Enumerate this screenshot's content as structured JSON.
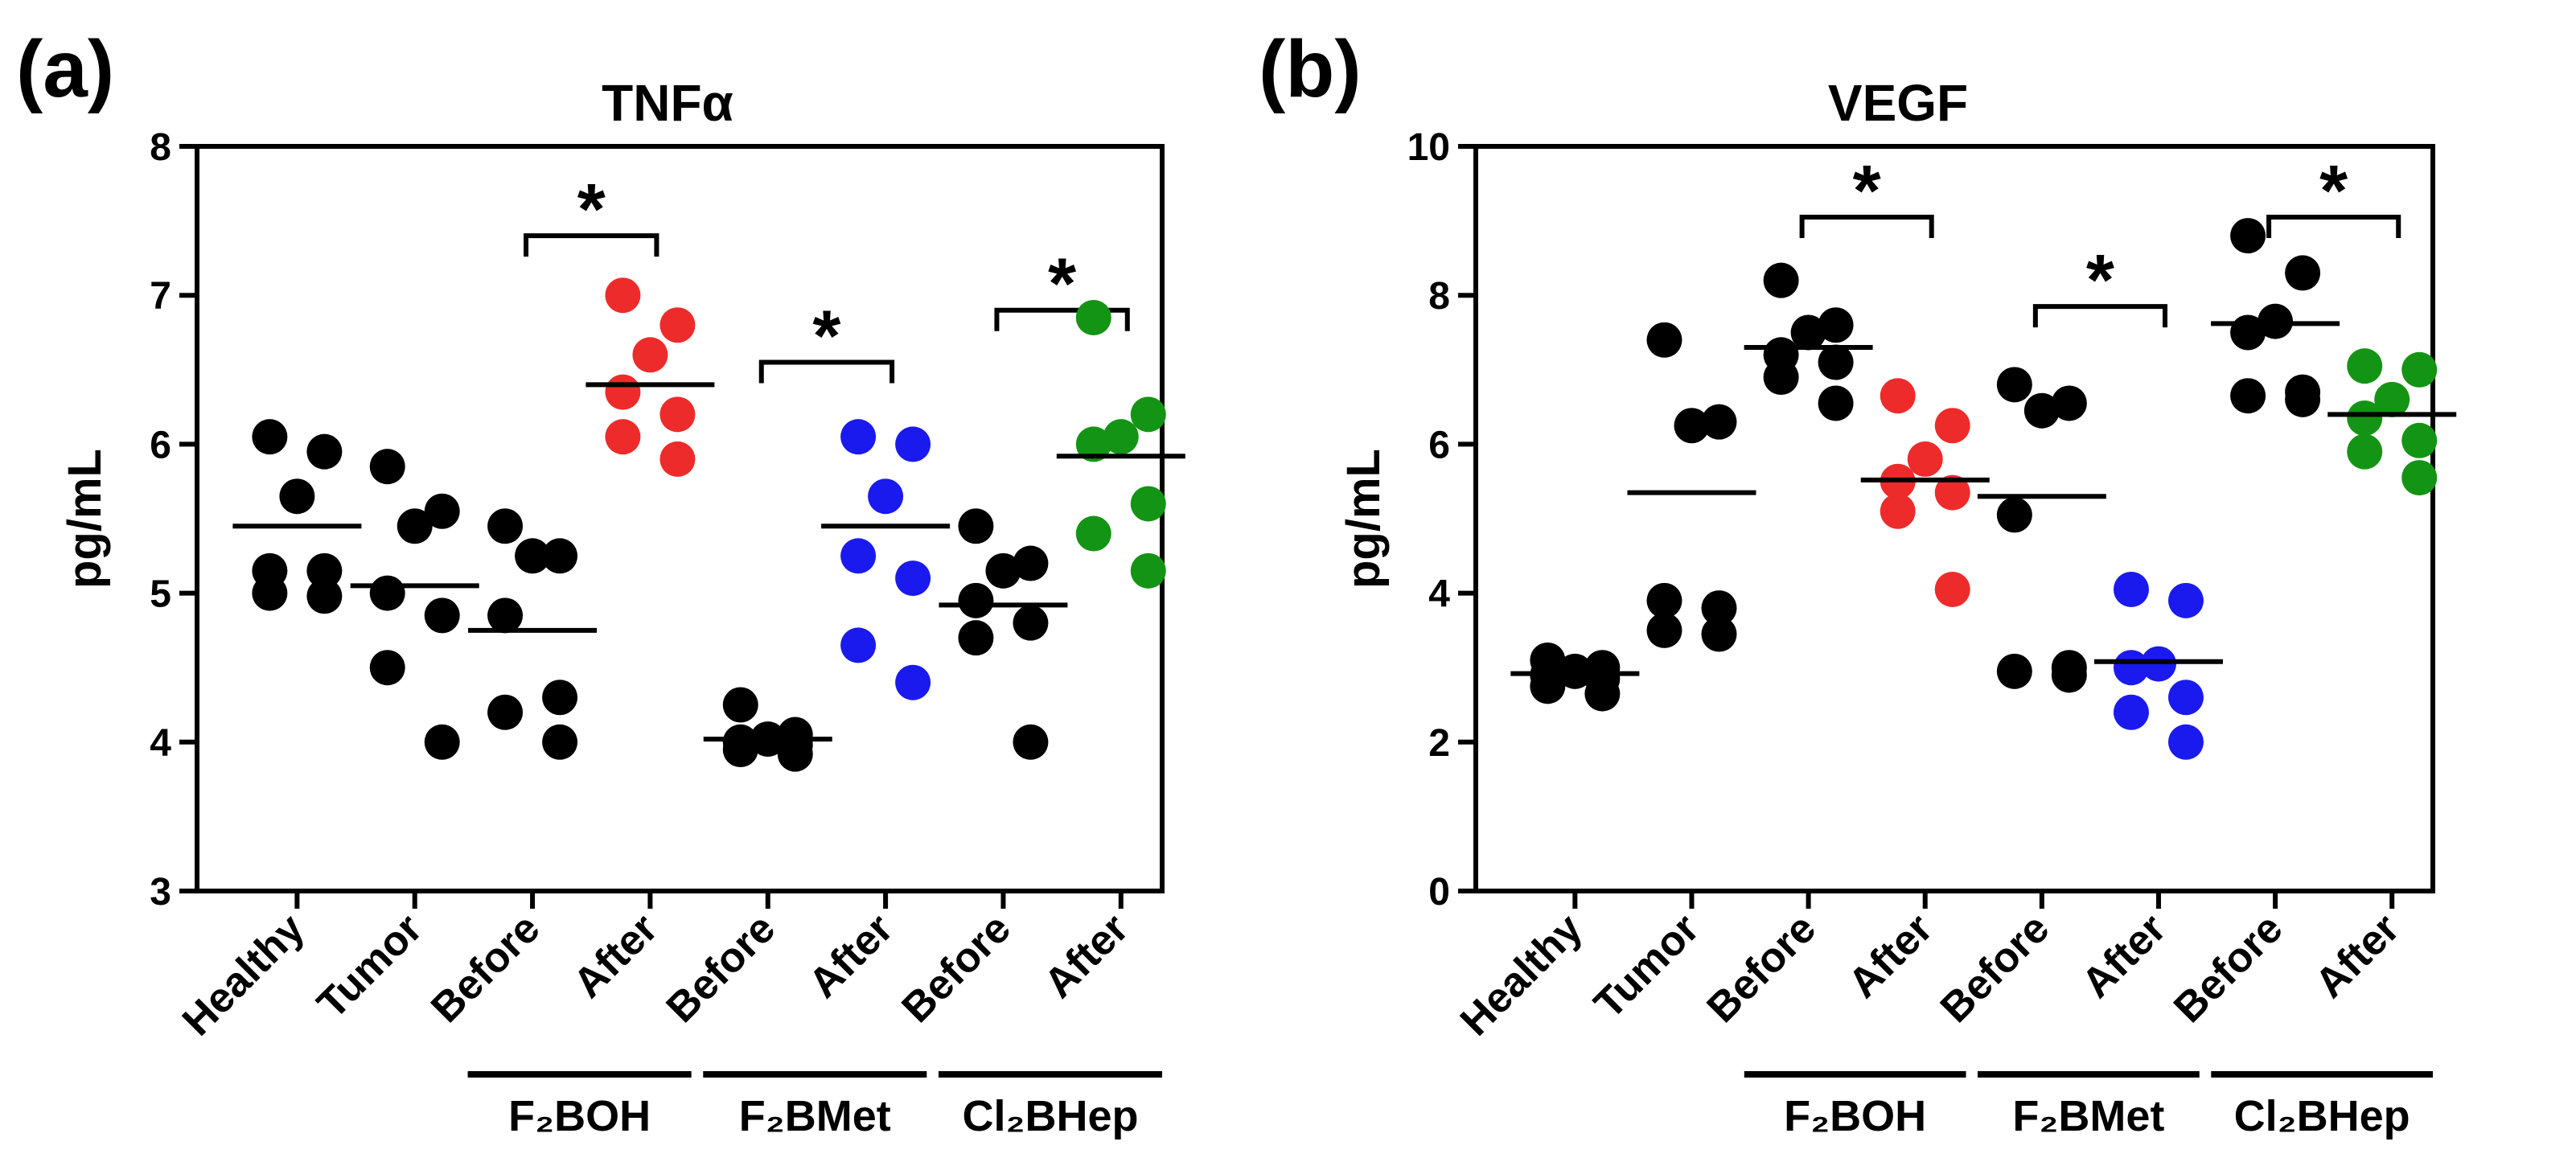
{
  "chart_data": [
    {
      "panel_label": "(a)",
      "type": "scatter",
      "title": "TNFα",
      "ylabel": "pg/mL",
      "xlabel": "",
      "ylim": [
        3,
        8
      ],
      "yticks": [
        3,
        4,
        5,
        6,
        7,
        8
      ],
      "categories": [
        "Healthy",
        "Tumor",
        "Before",
        "After",
        "Before",
        "After",
        "Before",
        "After"
      ],
      "groups": [
        {
          "name": "F₂BOH",
          "from": 2,
          "to": 3
        },
        {
          "name": "F₂BMet",
          "from": 4,
          "to": 5
        },
        {
          "name": "Cl₂BHep",
          "from": 6,
          "to": 7
        }
      ],
      "significance": [
        {
          "from": 2,
          "to": 3,
          "y": 7.4,
          "label": "*"
        },
        {
          "from": 4,
          "to": 5,
          "y": 6.55,
          "label": "*"
        },
        {
          "from": 6,
          "to": 7,
          "y": 6.9,
          "label": "*"
        }
      ],
      "series": [
        {
          "name": "Healthy",
          "color": "#000000",
          "mean": 5.45,
          "values": [
            6.05,
            5.95,
            5.65,
            5.15,
            5.15,
            5.0,
            4.98
          ]
        },
        {
          "name": "Tumor",
          "color": "#000000",
          "mean": 5.05,
          "values": [
            5.85,
            5.55,
            5.45,
            5.0,
            4.85,
            4.5,
            4.0
          ]
        },
        {
          "name": "F₂BOH Before",
          "color": "#000000",
          "mean": 4.75,
          "values": [
            5.45,
            5.25,
            5.25,
            4.85,
            4.3,
            4.2,
            4.0
          ]
        },
        {
          "name": "F₂BOH After",
          "color": "#ee2b2b",
          "mean": 6.4,
          "values": [
            7.0,
            6.8,
            6.6,
            6.35,
            6.2,
            6.05,
            5.9
          ]
        },
        {
          "name": "F₂BMet Before",
          "color": "#000000",
          "mean": 4.02,
          "values": [
            4.25,
            4.05,
            4.02,
            4.0,
            3.98,
            3.95,
            3.92
          ]
        },
        {
          "name": "F₂BMet After",
          "color": "#1a1aee",
          "mean": 5.45,
          "values": [
            6.05,
            6.0,
            5.65,
            5.25,
            5.1,
            4.65,
            4.4
          ]
        },
        {
          "name": "Cl₂BHep Before",
          "color": "#000000",
          "mean": 4.92,
          "values": [
            5.45,
            5.2,
            5.15,
            4.95,
            4.8,
            4.7,
            4.0
          ]
        },
        {
          "name": "Cl₂BHep After",
          "color": "#149414",
          "mean": 5.92,
          "values": [
            6.85,
            6.2,
            6.05,
            6.0,
            5.6,
            5.4,
            5.15
          ]
        }
      ]
    },
    {
      "panel_label": "(b)",
      "type": "scatter",
      "title": "VEGF",
      "ylabel": "pg/mL",
      "xlabel": "",
      "ylim": [
        0,
        10
      ],
      "yticks": [
        0,
        2,
        4,
        6,
        8,
        10
      ],
      "categories": [
        "Healthy",
        "Tumor",
        "Before",
        "After",
        "Before",
        "After",
        "Before",
        "After"
      ],
      "groups": [
        {
          "name": "F₂BOH",
          "from": 2,
          "to": 3
        },
        {
          "name": "F₂BMet",
          "from": 4,
          "to": 5
        },
        {
          "name": "Cl₂BHep",
          "from": 6,
          "to": 7
        }
      ],
      "significance": [
        {
          "from": 2,
          "to": 3,
          "y": 9.05,
          "label": "*"
        },
        {
          "from": 4,
          "to": 5,
          "y": 7.85,
          "label": "*"
        },
        {
          "from": 6,
          "to": 7,
          "y": 9.05,
          "label": "*"
        }
      ],
      "series": [
        {
          "name": "Healthy",
          "color": "#000000",
          "mean": 2.92,
          "values": [
            3.1,
            3.0,
            2.95,
            2.9,
            2.85,
            2.75,
            2.65
          ]
        },
        {
          "name": "Tumor",
          "color": "#000000",
          "mean": 5.35,
          "values": [
            7.4,
            6.3,
            6.25,
            3.9,
            3.8,
            3.5,
            3.45
          ]
        },
        {
          "name": "F₂BOH Before",
          "color": "#000000",
          "mean": 7.3,
          "values": [
            8.2,
            7.6,
            7.5,
            7.2,
            7.1,
            6.9,
            6.55
          ]
        },
        {
          "name": "F₂BOH After",
          "color": "#ee2b2b",
          "mean": 5.52,
          "values": [
            6.65,
            6.25,
            5.8,
            5.5,
            5.35,
            5.1,
            4.05
          ]
        },
        {
          "name": "F₂BMet Before",
          "color": "#000000",
          "mean": 5.3,
          "values": [
            6.8,
            6.55,
            6.45,
            5.05,
            3.0,
            2.95,
            2.9
          ]
        },
        {
          "name": "F₂BMet After",
          "color": "#1a1aee",
          "mean": 3.08,
          "values": [
            4.05,
            3.9,
            3.05,
            3.0,
            2.6,
            2.4,
            2.0
          ]
        },
        {
          "name": "Cl₂BHep Before",
          "color": "#000000",
          "mean": 7.62,
          "values": [
            8.8,
            8.3,
            7.65,
            7.5,
            6.7,
            6.65,
            6.6
          ]
        },
        {
          "name": "Cl₂BHep After",
          "color": "#149414",
          "mean": 6.4,
          "values": [
            7.05,
            7.0,
            6.6,
            6.35,
            6.05,
            5.9,
            5.55
          ]
        }
      ]
    }
  ]
}
